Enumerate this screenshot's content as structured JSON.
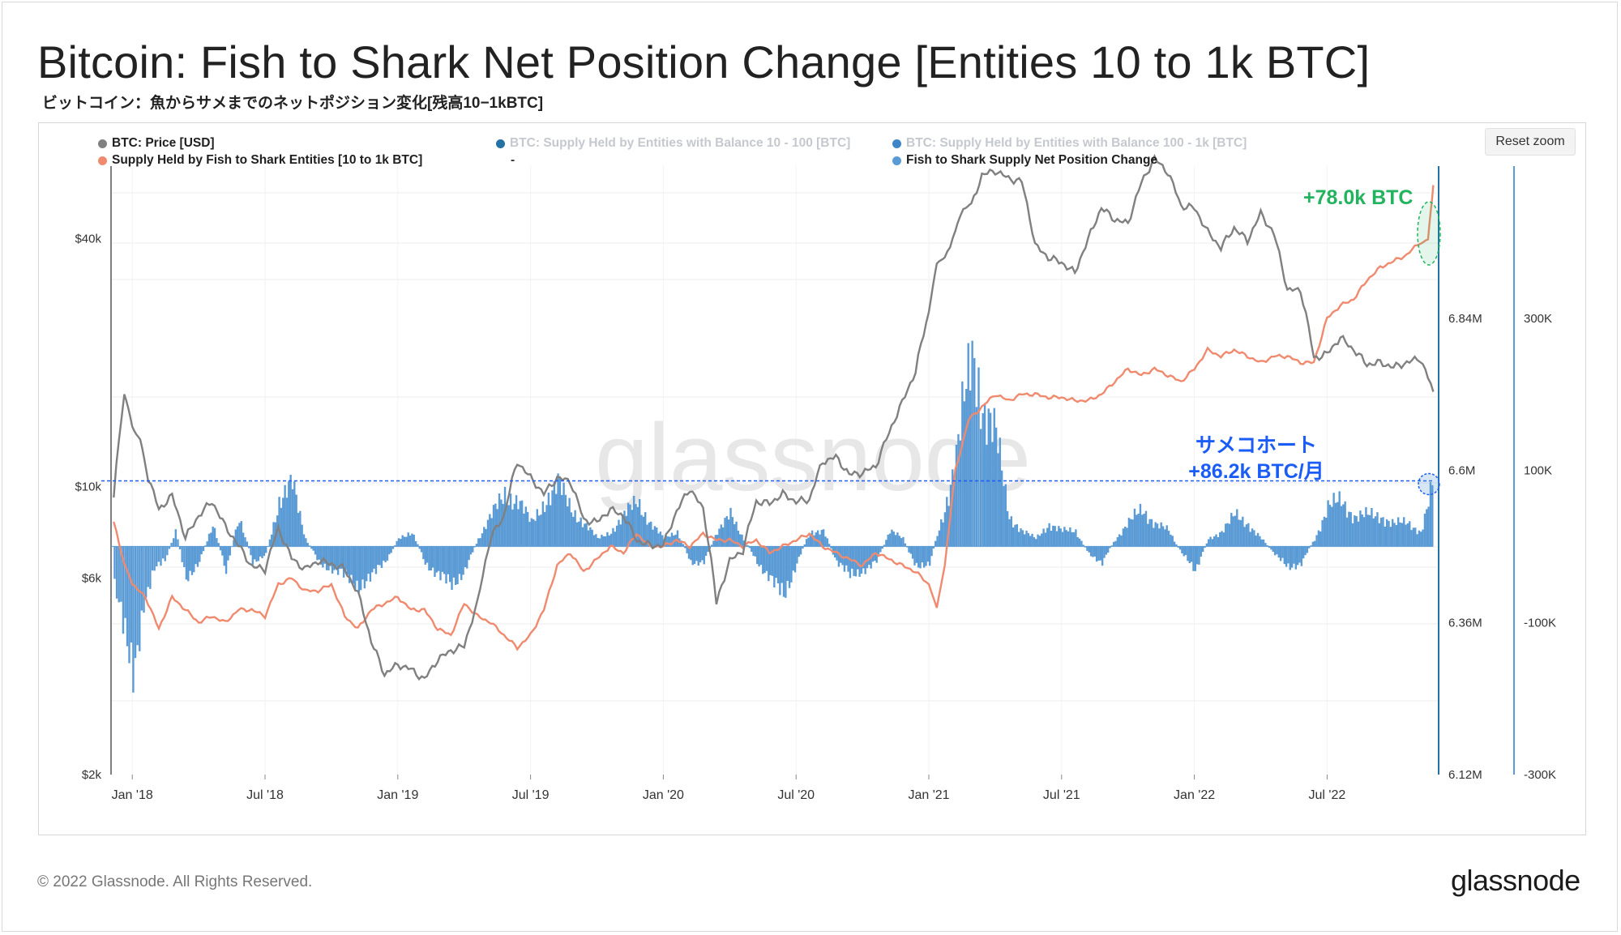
{
  "header": {
    "title": "Bitcoin: Fish to Shark Net Position Change [Entities 10 to 1k BTC]",
    "subtitle": "ビットコイン：魚からサメまでのネットポジション変化[残高10−1kBTC]"
  },
  "controls": {
    "reset_zoom_label": "Reset zoom"
  },
  "legend": [
    {
      "label": "BTC: Price [USD]",
      "color": "#808080",
      "enabled": true
    },
    {
      "label": "Supply Held by Fish to Shark Entities [10 to 1k BTC]",
      "color": "#f08a6f",
      "enabled": true
    },
    {
      "label": "BTC: Supply Held by Entities with Balance 10 - 100 [BTC]",
      "color": "#2471a3",
      "enabled": false
    },
    {
      "label": "-",
      "color": "#2471a3",
      "enabled": false
    },
    {
      "label": "BTC: Supply Held by Entities with Balance 100 - 1k [BTC]",
      "color": "#3d84c8",
      "enabled": false
    },
    {
      "label": "Fish to Shark Supply Net Position Change",
      "color": "#5b9bd5",
      "enabled": true
    }
  ],
  "annotations": {
    "green_label": "+78.0k BTC",
    "blue_line1": "サメコホート",
    "blue_line2": "+86.2k BTC/月",
    "green_color": "#22b35e",
    "blue_color": "#1a5cf5"
  },
  "watermark": "glassnode",
  "footer": {
    "copyright": "© 2022 Glassnode. All Rights Reserved.",
    "logo": "glassnode"
  },
  "chart_data": {
    "type": "line",
    "x_ticks": [
      "Jan '18",
      "Jul '18",
      "Jan '19",
      "Jul '19",
      "Jan '20",
      "Jul '20",
      "Jan '21",
      "Jul '21",
      "Jan '22",
      "Jul '22"
    ],
    "x_range": [
      2017.92,
      2022.92
    ],
    "price_axis": {
      "label": "BTC: Price [USD]",
      "scale": "log",
      "ticks": [
        "$2k",
        "$6k",
        "$10k",
        "$40k"
      ],
      "tick_values": [
        2000,
        6000,
        10000,
        40000
      ],
      "range": [
        2000,
        60000
      ]
    },
    "supply_axis": {
      "ticks": [
        "6.12M",
        "6.36M",
        "6.6M",
        "6.84M"
      ],
      "tick_values": [
        6120000,
        6360000,
        6600000,
        6840000
      ],
      "range": [
        6120000,
        7080000
      ]
    },
    "netchange_axis": {
      "ticks": [
        "-300K",
        "-100K",
        "100K",
        "300K"
      ],
      "tick_values": [
        -300000,
        -100000,
        100000,
        300000
      ],
      "range": [
        -300000,
        500000
      ]
    },
    "series": [
      {
        "name": "BTC: Price [USD]",
        "axis": "price",
        "color": "#808080",
        "x": [
          2017.93,
          2017.97,
          2018.0,
          2018.03,
          2018.06,
          2018.1,
          2018.15,
          2018.2,
          2018.25,
          2018.3,
          2018.35,
          2018.4,
          2018.45,
          2018.5,
          2018.55,
          2018.6,
          2018.65,
          2018.7,
          2018.75,
          2018.8,
          2018.85,
          2018.9,
          2018.95,
          2019.0,
          2019.05,
          2019.1,
          2019.15,
          2019.2,
          2019.25,
          2019.3,
          2019.35,
          2019.4,
          2019.45,
          2019.5,
          2019.55,
          2019.6,
          2019.65,
          2019.7,
          2019.75,
          2019.8,
          2019.85,
          2019.9,
          2019.95,
          2020.0,
          2020.05,
          2020.1,
          2020.15,
          2020.2,
          2020.25,
          2020.3,
          2020.35,
          2020.4,
          2020.45,
          2020.5,
          2020.55,
          2020.6,
          2020.65,
          2020.7,
          2020.75,
          2020.8,
          2020.85,
          2020.9,
          2020.95,
          2021.0,
          2021.03,
          2021.06,
          2021.1,
          2021.13,
          2021.16,
          2021.2,
          2021.25,
          2021.3,
          2021.35,
          2021.4,
          2021.45,
          2021.5,
          2021.55,
          2021.6,
          2021.65,
          2021.7,
          2021.75,
          2021.8,
          2021.85,
          2021.9,
          2021.95,
          2022.0,
          2022.05,
          2022.1,
          2022.15,
          2022.2,
          2022.25,
          2022.3,
          2022.35,
          2022.4,
          2022.45,
          2022.5,
          2022.55,
          2022.6,
          2022.65,
          2022.7,
          2022.75,
          2022.8,
          2022.85,
          2022.9
        ],
        "values": [
          9500,
          16500,
          14000,
          13000,
          10500,
          8800,
          9500,
          7500,
          8500,
          9200,
          8000,
          7200,
          6400,
          6300,
          7900,
          6700,
          6300,
          6600,
          6500,
          6300,
          5500,
          4200,
          3500,
          3700,
          3600,
          3400,
          3800,
          4000,
          4100,
          5200,
          7500,
          8500,
          11500,
          10500,
          9600,
          10500,
          10300,
          8300,
          8200,
          8800,
          8500,
          7400,
          7200,
          7200,
          8700,
          9900,
          8800,
          5200,
          6600,
          7000,
          9200,
          9100,
          9600,
          9200,
          9300,
          11500,
          11800,
          10700,
          10800,
          11200,
          13500,
          16000,
          19000,
          26500,
          34000,
          36000,
          41000,
          47000,
          48000,
          57000,
          58500,
          56000,
          55000,
          38500,
          36000,
          35000,
          33000,
          39800,
          47500,
          44500,
          43500,
          54500,
          62500,
          58000,
          48000,
          47500,
          41500,
          38000,
          42500,
          39500,
          46000,
          41000,
          30000,
          30000,
          20500,
          21000,
          23000,
          21500,
          19800,
          20000,
          19500,
          20000,
          20500,
          17000
        ]
      },
      {
        "name": "Supply Held by Fish to Shark Entities [10 to 1k BTC]",
        "axis": "supply",
        "color": "#f08a6f",
        "x": [
          2017.93,
          2017.97,
          2018.0,
          2018.05,
          2018.1,
          2018.15,
          2018.2,
          2018.25,
          2018.3,
          2018.35,
          2018.4,
          2018.45,
          2018.5,
          2018.55,
          2018.6,
          2018.65,
          2018.7,
          2018.75,
          2018.8,
          2018.85,
          2018.9,
          2018.95,
          2019.0,
          2019.05,
          2019.1,
          2019.15,
          2019.2,
          2019.25,
          2019.3,
          2019.35,
          2019.4,
          2019.45,
          2019.5,
          2019.55,
          2019.6,
          2019.65,
          2019.7,
          2019.75,
          2019.8,
          2019.85,
          2019.9,
          2019.95,
          2020.0,
          2020.05,
          2020.1,
          2020.15,
          2020.2,
          2020.25,
          2020.3,
          2020.35,
          2020.4,
          2020.45,
          2020.5,
          2020.55,
          2020.6,
          2020.65,
          2020.7,
          2020.75,
          2020.8,
          2020.85,
          2020.9,
          2020.95,
          2021.0,
          2021.03,
          2021.06,
          2021.1,
          2021.15,
          2021.2,
          2021.25,
          2021.3,
          2021.35,
          2021.4,
          2021.45,
          2021.5,
          2021.55,
          2021.6,
          2021.65,
          2021.7,
          2021.75,
          2021.8,
          2021.85,
          2021.9,
          2021.95,
          2022.0,
          2022.05,
          2022.1,
          2022.15,
          2022.2,
          2022.25,
          2022.3,
          2022.35,
          2022.4,
          2022.45,
          2022.5,
          2022.55,
          2022.6,
          2022.65,
          2022.7,
          2022.75,
          2022.8,
          2022.85,
          2022.88,
          2022.9
        ],
        "values": [
          6520000,
          6450000,
          6420000,
          6400000,
          6350000,
          6400000,
          6380000,
          6360000,
          6370000,
          6360000,
          6380000,
          6380000,
          6370000,
          6420000,
          6430000,
          6410000,
          6410000,
          6420000,
          6370000,
          6350000,
          6380000,
          6390000,
          6400000,
          6380000,
          6380000,
          6350000,
          6340000,
          6390000,
          6370000,
          6360000,
          6340000,
          6320000,
          6340000,
          6380000,
          6450000,
          6470000,
          6440000,
          6460000,
          6480000,
          6470000,
          6500000,
          6480000,
          6480000,
          6490000,
          6480000,
          6500000,
          6490000,
          6490000,
          6480000,
          6490000,
          6470000,
          6480000,
          6490000,
          6500000,
          6480000,
          6470000,
          6460000,
          6450000,
          6470000,
          6460000,
          6450000,
          6440000,
          6420000,
          6380000,
          6450000,
          6600000,
          6680000,
          6700000,
          6720000,
          6710000,
          6720000,
          6720000,
          6715000,
          6715000,
          6710000,
          6710000,
          6720000,
          6740000,
          6760000,
          6750000,
          6760000,
          6750000,
          6740000,
          6760000,
          6790000,
          6780000,
          6790000,
          6780000,
          6770000,
          6780000,
          6780000,
          6770000,
          6770000,
          6840000,
          6860000,
          6870000,
          6900000,
          6920000,
          6930000,
          6940000,
          6960000,
          6965000,
          7050000
        ]
      },
      {
        "name": "Fish to Shark Supply Net Position Change",
        "axis": "netchange",
        "color": "#5b9bd5",
        "x": [
          2017.93,
          2017.97,
          2018.0,
          2018.04,
          2018.08,
          2018.12,
          2018.16,
          2018.2,
          2018.25,
          2018.3,
          2018.35,
          2018.4,
          2018.45,
          2018.5,
          2018.55,
          2018.6,
          2018.65,
          2018.7,
          2018.75,
          2018.8,
          2018.85,
          2018.9,
          2018.95,
          2019.0,
          2019.05,
          2019.1,
          2019.15,
          2019.2,
          2019.25,
          2019.3,
          2019.35,
          2019.4,
          2019.45,
          2019.5,
          2019.55,
          2019.6,
          2019.65,
          2019.7,
          2019.75,
          2019.8,
          2019.85,
          2019.9,
          2019.95,
          2020.0,
          2020.05,
          2020.1,
          2020.15,
          2020.2,
          2020.25,
          2020.3,
          2020.35,
          2020.4,
          2020.45,
          2020.5,
          2020.55,
          2020.6,
          2020.65,
          2020.7,
          2020.75,
          2020.8,
          2020.85,
          2020.9,
          2020.95,
          2021.0,
          2021.05,
          2021.1,
          2021.13,
          2021.16,
          2021.2,
          2021.25,
          2021.3,
          2021.35,
          2021.4,
          2021.45,
          2021.5,
          2021.55,
          2021.6,
          2021.65,
          2021.7,
          2021.75,
          2021.8,
          2021.85,
          2021.9,
          2021.95,
          2022.0,
          2022.05,
          2022.1,
          2022.15,
          2022.2,
          2022.25,
          2022.3,
          2022.35,
          2022.4,
          2022.45,
          2022.5,
          2022.55,
          2022.6,
          2022.65,
          2022.7,
          2022.75,
          2022.8,
          2022.85,
          2022.9
        ],
        "values": [
          -60000,
          -110000,
          -170000,
          -70000,
          -30000,
          -20000,
          20000,
          -40000,
          -20000,
          30000,
          -30000,
          40000,
          -20000,
          -10000,
          60000,
          80000,
          10000,
          -20000,
          -30000,
          -40000,
          -50000,
          -40000,
          -20000,
          10000,
          20000,
          -20000,
          -40000,
          -50000,
          -30000,
          10000,
          40000,
          70000,
          60000,
          30000,
          60000,
          80000,
          50000,
          30000,
          10000,
          20000,
          40000,
          60000,
          30000,
          10000,
          20000,
          -20000,
          -20000,
          20000,
          40000,
          10000,
          -20000,
          -40000,
          -70000,
          -20000,
          20000,
          20000,
          -20000,
          -40000,
          -30000,
          -20000,
          20000,
          10000,
          -30000,
          -20000,
          40000,
          120000,
          200000,
          240000,
          190000,
          140000,
          40000,
          20000,
          10000,
          30000,
          20000,
          20000,
          -10000,
          -20000,
          10000,
          30000,
          50000,
          30000,
          20000,
          -10000,
          -30000,
          10000,
          20000,
          40000,
          30000,
          10000,
          -10000,
          -30000,
          -20000,
          10000,
          50000,
          60000,
          40000,
          40000,
          40000,
          30000,
          30000,
          20000,
          86200
        ]
      }
    ]
  }
}
